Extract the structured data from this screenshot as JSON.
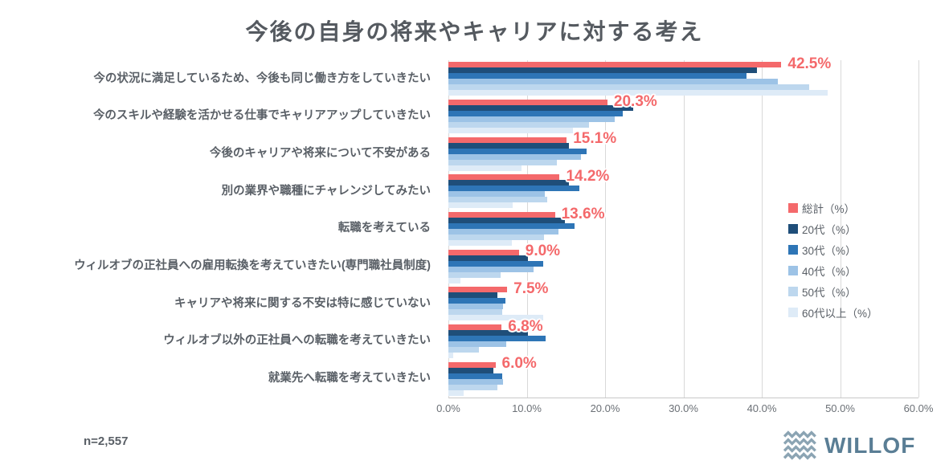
{
  "title": "今後の自身の将来やキャリアに対する考え",
  "footnote": "n=2,557",
  "logo": {
    "text": "WILLOF",
    "icon": "wave-zigzag-icon",
    "text_color": "#5a7e95",
    "icon_color": "#8ba4b3"
  },
  "colors": {
    "accent_red": "#f4696b",
    "gridline": "#d9d9d9",
    "text_gray": "#595f66"
  },
  "chart_data": {
    "type": "bar",
    "orientation": "horizontal",
    "title": "今後の自身の将来やキャリアに対する考え",
    "xlabel": "",
    "ylabel": "",
    "xlim": [
      0,
      60
    ],
    "x_ticks": [
      "0.0%",
      "10.0%",
      "20.0%",
      "30.0%",
      "40.0%",
      "50.0%",
      "60.0%"
    ],
    "grid": true,
    "legend_position": "right",
    "data_labels": "total series only, red bold with white outline",
    "categories": [
      "今の状況に満足しているため、今後も同じ働き方をしていきたい",
      "今のスキルや経験を活かせる仕事でキャリアアップしていきたい",
      "今後のキャリアや将来について不安がある",
      "別の業界や職種にチャレンジしてみたい",
      "転職を考えている",
      "ウィルオブの正社員への雇用転換を考えていきたい(専門職社員制度)",
      "キャリアや将来に関する不安は特に感じていない",
      "ウィルオブ以外の正社員への転職を考えていきたい",
      "就業先へ転職を考えていきたい"
    ],
    "series": [
      {
        "key": "total",
        "name": "総計（%）",
        "color": "#f4696b",
        "labeled": true,
        "values": [
          42.5,
          20.3,
          15.1,
          14.2,
          13.6,
          9.0,
          7.5,
          6.8,
          6.0
        ]
      },
      {
        "key": "20s",
        "name": "20代（%）",
        "color": "#1f4e79",
        "labeled": false,
        "values": [
          39.4,
          23.6,
          15.4,
          15.4,
          14.9,
          10.2,
          6.3,
          10.2,
          5.7
        ]
      },
      {
        "key": "30s",
        "name": "30代（%）",
        "color": "#2e75b6",
        "labeled": false,
        "values": [
          38.0,
          22.3,
          17.6,
          16.7,
          16.1,
          12.1,
          7.3,
          12.4,
          6.9
        ]
      },
      {
        "key": "40s",
        "name": "40代（%）",
        "color": "#9dc3e6",
        "labeled": false,
        "values": [
          42.1,
          21.2,
          16.9,
          12.3,
          14.0,
          10.9,
          7.0,
          7.4,
          7.0
        ]
      },
      {
        "key": "50s",
        "name": "50代（%）",
        "color": "#bdd7ee",
        "labeled": false,
        "values": [
          46.1,
          17.9,
          13.8,
          12.6,
          12.2,
          6.7,
          6.9,
          3.9,
          6.3
        ]
      },
      {
        "key": "60s-plus",
        "name": "60代以上（%）",
        "color": "#deebf7",
        "labeled": false,
        "values": [
          48.4,
          15.9,
          9.3,
          8.2,
          8.1,
          1.5,
          12.1,
          0.6,
          1.9
        ]
      }
    ]
  }
}
